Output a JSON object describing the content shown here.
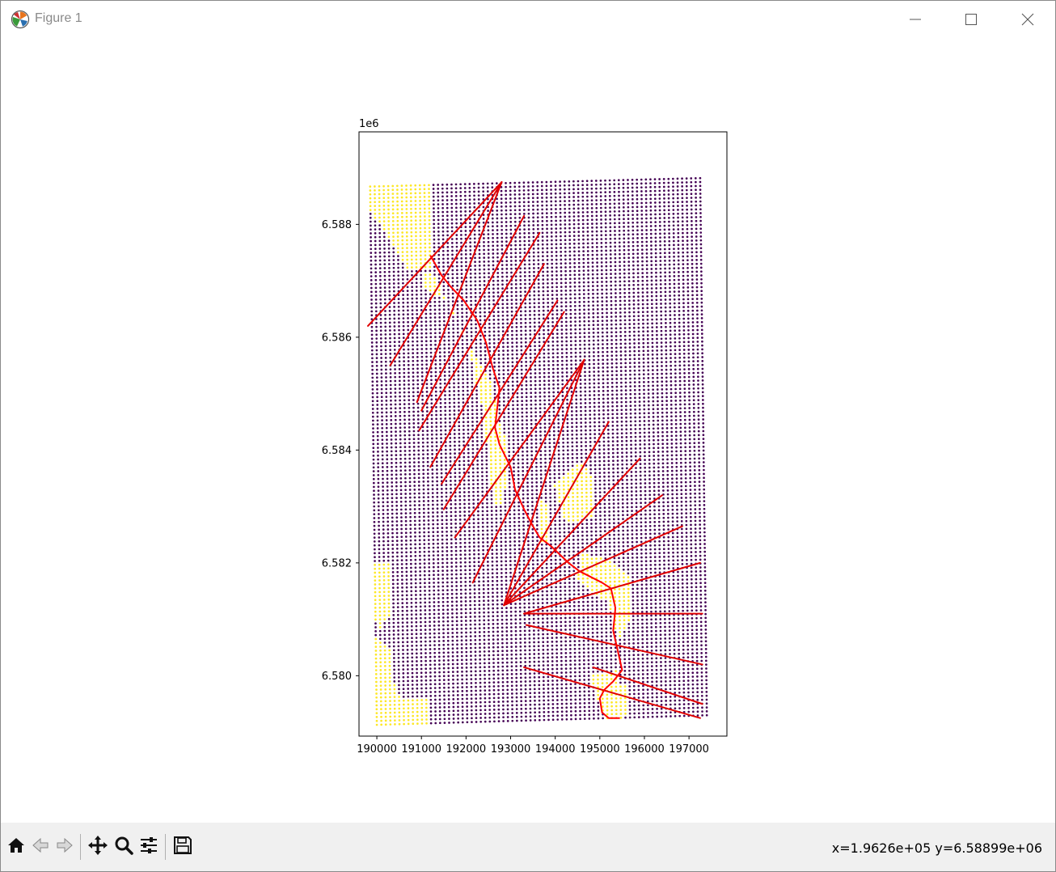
{
  "window": {
    "title": "Figure 1",
    "icon": "matplotlib-icon",
    "controls": [
      "minimize-icon",
      "maximize-icon",
      "close-icon"
    ]
  },
  "toolbar": {
    "tools": [
      "home-icon",
      "back-arrow-icon",
      "forward-arrow-icon",
      "pan-move-icon",
      "zoom-magnifier-icon",
      "configure-subplots-icon",
      "save-floppy-icon"
    ],
    "coordinate_readout": "x=1.9626e+05 y=6.58899e+06"
  },
  "chart_data": {
    "type": "scatter",
    "title": "",
    "xlabel": "",
    "ylabel": "",
    "y_offset_text": "1e6",
    "xlim": [
      189600,
      197850
    ],
    "ylim": [
      6.57893,
      6.58964
    ],
    "x_ticks": [
      190000,
      191000,
      192000,
      193000,
      194000,
      195000,
      196000,
      197000
    ],
    "x_tick_labels": [
      "190000",
      "191000",
      "192000",
      "193000",
      "194000",
      "195000",
      "196000",
      "197000"
    ],
    "y_ticks": [
      6.58,
      6.582,
      6.584,
      6.586,
      6.588
    ],
    "y_tick_labels": [
      "6.580",
      "6.582",
      "6.584",
      "6.586",
      "6.588"
    ],
    "grid": false,
    "legend": "none",
    "colors": {
      "background_class": "#440154",
      "highlight_class": "#fde725",
      "lines": "#e00000",
      "stream": "#ff0000"
    },
    "grid_points": {
      "description_units": "data units (x easting, y in 1e6 units)",
      "corners": {
        "top_left": [
          189850,
          6.58867
        ],
        "top_right": [
          197250,
          6.58882
        ],
        "bottom_left": [
          190000,
          6.57913
        ],
        "bottom_right": [
          197400,
          6.5793
        ]
      },
      "columns": 74,
      "rows": 139,
      "highlight_regions": [
        [
          [
            189850,
            6.58867
          ],
          [
            191250,
            6.58871
          ],
          [
            191200,
            6.58757
          ],
          [
            191200,
            6.58719
          ],
          [
            190700,
            6.5872
          ],
          [
            190100,
            6.58795
          ],
          [
            189850,
            6.5882
          ]
        ],
        [
          [
            191000,
            6.5872
          ],
          [
            191300,
            6.5871
          ],
          [
            191650,
            6.5865
          ],
          [
            192100,
            6.5858
          ],
          [
            192550,
            6.5852
          ],
          [
            192900,
            6.584
          ],
          [
            192950,
            6.5834
          ],
          [
            192700,
            6.5831
          ],
          [
            192550,
            6.5835
          ],
          [
            192350,
            6.5848
          ],
          [
            192000,
            6.586
          ],
          [
            191600,
            6.5866
          ],
          [
            191000,
            6.5869
          ]
        ],
        [
          [
            192450,
            6.5848
          ],
          [
            192900,
            6.5842
          ],
          [
            192800,
            6.583
          ],
          [
            192600,
            6.583
          ]
        ],
        [
          [
            193950,
            6.5834
          ],
          [
            194550,
            6.5838
          ],
          [
            194900,
            6.5835
          ],
          [
            194850,
            6.5828
          ],
          [
            194250,
            6.5827
          ]
        ],
        [
          [
            193600,
            6.5832
          ],
          [
            193850,
            6.583
          ],
          [
            193900,
            6.5823
          ],
          [
            193650,
            6.5824
          ]
        ],
        [
          [
            194550,
            6.5822
          ],
          [
            194950,
            6.5821
          ],
          [
            195350,
            6.582
          ],
          [
            195650,
            6.5818
          ],
          [
            195650,
            6.5809
          ],
          [
            195400,
            6.5806
          ],
          [
            195200,
            6.5813
          ],
          [
            194800,
            6.5815
          ],
          [
            194500,
            6.5817
          ]
        ],
        [
          [
            194800,
            6.58
          ],
          [
            195400,
            6.5801
          ],
          [
            195400,
            6.5792
          ],
          [
            195150,
            6.5792
          ],
          [
            194950,
            6.5796
          ]
        ],
        [
          [
            195250,
            6.5798
          ],
          [
            195650,
            6.5799
          ],
          [
            195650,
            6.5793
          ],
          [
            195300,
            6.5792
          ]
        ],
        [
          [
            189900,
            6.582
          ],
          [
            190350,
            6.582
          ],
          [
            190300,
            6.5811
          ],
          [
            190050,
            6.5808
          ],
          [
            189950,
            6.581
          ]
        ],
        [
          [
            189950,
            6.5807
          ],
          [
            190300,
            6.5805
          ],
          [
            190350,
            6.5799
          ],
          [
            190550,
            6.5796
          ],
          [
            191200,
            6.5796
          ],
          [
            191200,
            6.5791
          ],
          [
            190000,
            6.5791
          ]
        ]
      ]
    },
    "series": [
      {
        "type": "stream",
        "points": [
          [
            191200,
            6.58745
          ],
          [
            191450,
            6.5871
          ],
          [
            191650,
            6.5869
          ],
          [
            191950,
            6.58665
          ],
          [
            192250,
            6.5863
          ],
          [
            192450,
            6.5859
          ],
          [
            192600,
            6.58545
          ],
          [
            192750,
            6.5851
          ],
          [
            192700,
            6.58475
          ],
          [
            192650,
            6.5844
          ],
          [
            192750,
            6.5841
          ],
          [
            193000,
            6.5837
          ],
          [
            193100,
            6.5833
          ],
          [
            193300,
            6.58295
          ],
          [
            193500,
            6.58265
          ],
          [
            193650,
            6.58245
          ],
          [
            193900,
            6.5823
          ],
          [
            194100,
            6.58215
          ],
          [
            194300,
            6.582
          ],
          [
            194550,
            6.58185
          ],
          [
            194800,
            6.58175
          ],
          [
            195050,
            6.58165
          ],
          [
            195250,
            6.58155
          ],
          [
            195350,
            6.5812
          ],
          [
            195300,
            6.5808
          ],
          [
            195400,
            6.58045
          ],
          [
            195500,
            6.5801
          ],
          [
            195300,
            6.5799
          ],
          [
            195100,
            6.57975
          ],
          [
            195000,
            6.5796
          ],
          [
            195050,
            6.57935
          ],
          [
            195200,
            6.57925
          ],
          [
            195450,
            6.57925
          ]
        ]
      },
      {
        "type": "line-segments",
        "segments": [
          [
            [
              189800,
              6.5862
            ],
            [
              192800,
              6.58875
            ]
          ],
          [
            [
              190300,
              6.5855
            ],
            [
              192800,
              6.58875
            ]
          ],
          [
            [
              190900,
              6.58485
            ],
            [
              192800,
              6.58875
            ]
          ],
          [
            [
              191000,
              6.5847
            ],
            [
              193300,
              6.58815
            ]
          ],
          [
            [
              190950,
              6.58435
            ],
            [
              193650,
              6.58785
            ]
          ],
          [
            [
              191200,
              6.5837
            ],
            [
              193750,
              6.5873
            ]
          ],
          [
            [
              191450,
              6.5834
            ],
            [
              194050,
              6.58665
            ]
          ],
          [
            [
              191500,
              6.58295
            ],
            [
              194200,
              6.58645
            ]
          ],
          [
            [
              191750,
              6.58245
            ],
            [
              194650,
              6.5856
            ]
          ],
          [
            [
              192150,
              6.58165
            ],
            [
              194650,
              6.5856
            ]
          ],
          [
            [
              192850,
              6.58125
            ],
            [
              194650,
              6.5856
            ]
          ],
          [
            [
              192850,
              6.58125
            ],
            [
              195200,
              6.5845
            ]
          ],
          [
            [
              192850,
              6.58125
            ],
            [
              195900,
              6.58385
            ]
          ],
          [
            [
              192850,
              6.58125
            ],
            [
              196400,
              6.5832
            ]
          ],
          [
            [
              192850,
              6.58125
            ],
            [
              196850,
              6.58265
            ]
          ],
          [
            [
              193300,
              6.5811
            ],
            [
              197250,
              6.582
            ]
          ],
          [
            [
              193300,
              6.5811
            ],
            [
              197300,
              6.5811
            ]
          ],
          [
            [
              193350,
              6.5809
            ],
            [
              197300,
              6.5802
            ]
          ],
          [
            [
              193300,
              6.58015
            ],
            [
              197250,
              6.57925
            ]
          ],
          [
            [
              194850,
              6.58015
            ],
            [
              197300,
              6.5795
            ]
          ]
        ]
      }
    ]
  }
}
